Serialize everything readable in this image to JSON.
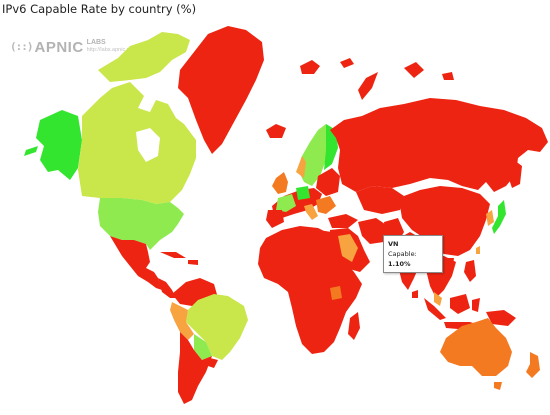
{
  "title": "IPv6 Capable Rate by country (%)",
  "logo": {
    "mark": "(::)",
    "name": "APNIC",
    "sub": "LABS",
    "url": "http://labs.apnic.net"
  },
  "tooltip": {
    "country": "VN",
    "label": "Capable:",
    "value": "1.10%"
  },
  "colors": {
    "red": "#ee2412",
    "red_dark": "#e2230f",
    "orange": "#f47a22",
    "light_orange": "#f6a340",
    "yellow_green": "#c9e64a",
    "light_green": "#8fea4f",
    "green": "#34e52f"
  }
}
